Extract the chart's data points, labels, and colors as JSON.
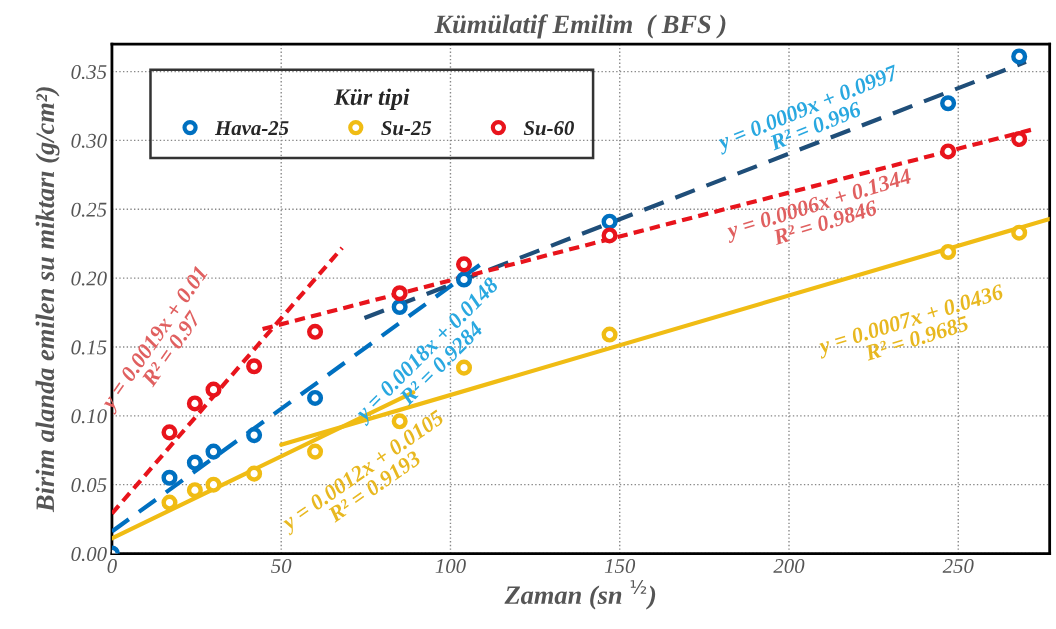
{
  "chart_data": {
    "type": "scatter",
    "title": "Kümülatif Emilim  ( BFS )",
    "xlabel": "Zaman (sn $^{½}$)",
    "ylabel": "Birim alanda emilen su miktarı (g/cm²)",
    "legend_title": "Kür tipi",
    "x": [
      0,
      17,
      24.5,
      30,
      42,
      60,
      85,
      104,
      147,
      247,
      268
    ],
    "series": [
      {
        "name": "Hava-25",
        "marker": "circle",
        "color": "#0070c0",
        "values": [
          0.0,
          0.055,
          0.066,
          0.074,
          0.086,
          0.113,
          0.179,
          0.199,
          0.241,
          0.327,
          0.361
        ]
      },
      {
        "name": "Su-25",
        "marker": "circle",
        "color": "#f0bc14",
        "values": [
          null,
          0.037,
          0.046,
          0.05,
          0.058,
          0.074,
          0.096,
          0.135,
          0.159,
          0.219,
          0.233
        ]
      },
      {
        "name": "Su-60",
        "marker": "circle",
        "color": "#e8141c",
        "values": [
          null,
          0.088,
          0.109,
          0.119,
          0.136,
          0.161,
          0.189,
          0.21,
          0.231,
          0.292,
          0.301
        ]
      },
      {
        "type": "line",
        "color": "#0070c0",
        "line_style": "dashed",
        "x": [
          0,
          110
        ],
        "values": [
          0.016,
          0.212
        ]
      },
      {
        "type": "line",
        "color": "#1f4e79",
        "line_style": "dashed",
        "x": [
          74.6,
          270
        ],
        "values": [
          0.171,
          0.357
        ]
      },
      {
        "type": "line",
        "color": "#e8141c",
        "line_style": "dotted",
        "x": [
          0,
          68
        ],
        "values": [
          0.029,
          0.222
        ]
      },
      {
        "type": "line",
        "color": "#e8141c",
        "line_style": "dotted",
        "x": [
          44.5,
          272
        ],
        "values": [
          0.163,
          0.308
        ]
      },
      {
        "type": "line",
        "color": "#f0bc14",
        "line_style": "solid",
        "x": [
          0,
          89
        ],
        "values": [
          0.011,
          0.117
        ]
      },
      {
        "type": "line",
        "color": "#f0bc14",
        "line_style": "solid",
        "x": [
          50,
          277
        ],
        "values": [
          0.079,
          0.243
        ]
      }
    ],
    "annotations": [
      "y = 0.0019x + 0.01\nR² = 0.97",
      "y = 0.0018x + 0.0148\nR² = 0.9284",
      "y = 0.0012x + 0.0105\nR² = 0.9193",
      "y = 0.0009x + 0.0997\nR² = 0.996",
      "y = 0.0006x + 0.1344\nR² = 0.9846",
      "y = 0.0007x + 0.0436\nR² = 0.9685"
    ],
    "xlim": [
      0,
      277
    ],
    "ylim": [
      0,
      0.37
    ],
    "xticks": [
      0,
      50,
      100,
      150,
      200,
      250
    ],
    "yticks": [
      {
        "value": 0,
        "label": "0.00"
      },
      {
        "value": 0.05,
        "label": "0.05"
      },
      {
        "value": 0.1,
        "label": "0.10"
      },
      {
        "value": 0.15,
        "label": "0.15"
      },
      {
        "value": 0.2,
        "label": "0.20"
      },
      {
        "value": 0.25,
        "label": "0.25"
      },
      {
        "value": 0.3,
        "label": "0.30"
      },
      {
        "value": 0.35,
        "label": "0.35"
      }
    ],
    "grid": true,
    "legend": "top left"
  }
}
